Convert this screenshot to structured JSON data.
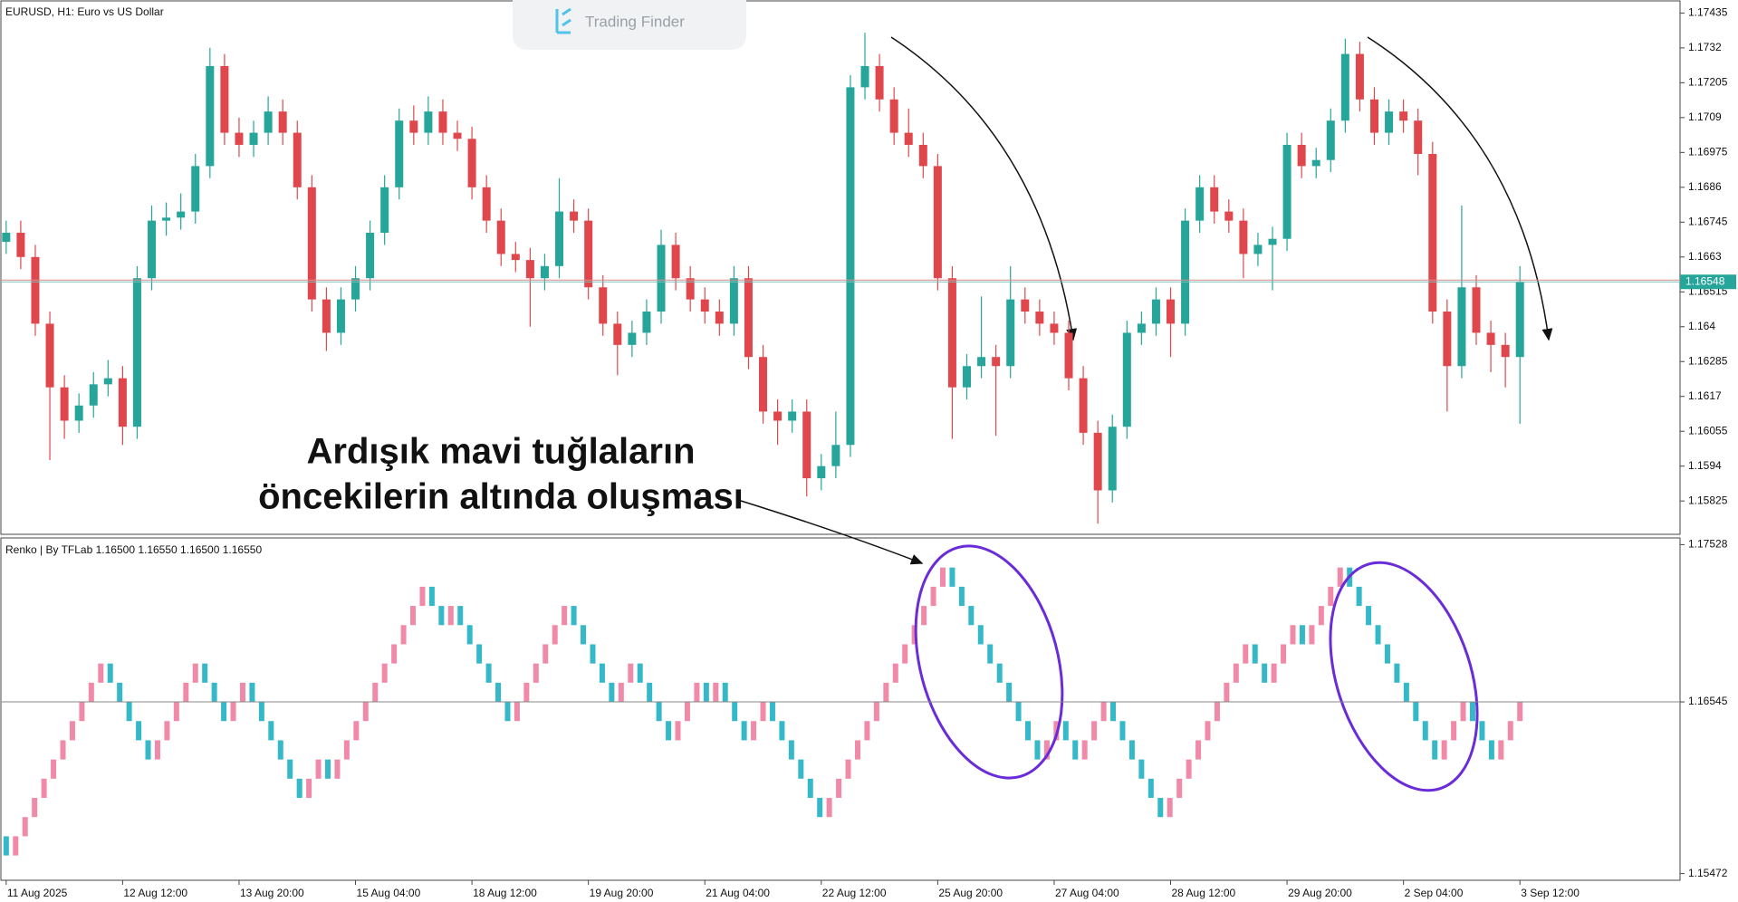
{
  "watermark": "Trading Finder",
  "chart_data": [
    {
      "type": "candlestick",
      "title": "EURUSD, H1:  Euro vs US Dollar",
      "up_color": "#26a69a",
      "down_color": "#e0474c",
      "ylim": [
        1.15715,
        1.17472
      ],
      "yticks": [
        1.17435,
        1.1732,
        1.17205,
        1.1709,
        1.16975,
        1.1686,
        1.16745,
        1.1663,
        1.16515,
        1.164,
        1.16285,
        1.1617,
        1.16055,
        1.1594,
        1.15825
      ],
      "last_price": 1.16548,
      "xlim": [
        -0.3,
        115
      ],
      "xticks": [
        {
          "value": 0,
          "label": "11 Aug 2025"
        },
        {
          "value": 8,
          "label": "12 Aug 12:00"
        },
        {
          "value": 16,
          "label": "13 Aug 20:00"
        },
        {
          "value": 24,
          "label": "15 Aug 04:00"
        },
        {
          "value": 32,
          "label": "18 Aug 12:00"
        },
        {
          "value": 40,
          "label": "19 Aug 20:00"
        },
        {
          "value": 48,
          "label": "21 Aug 04:00"
        },
        {
          "value": 56,
          "label": "22 Aug 12:00"
        },
        {
          "value": 64,
          "label": "25 Aug 20:00"
        },
        {
          "value": 72,
          "label": "27 Aug 04:00"
        },
        {
          "value": 80,
          "label": "28 Aug 12:00"
        },
        {
          "value": 88,
          "label": "29 Aug 20:00"
        },
        {
          "value": 96,
          "label": "2 Sep 04:00"
        },
        {
          "value": 104,
          "label": "3 Sep 12:00"
        }
      ],
      "ohlc": [
        [
          1.1668,
          1.1675,
          1.1664,
          1.1671
        ],
        [
          1.1671,
          1.1675,
          1.1659,
          1.1663
        ],
        [
          1.1663,
          1.1667,
          1.1637,
          1.1641
        ],
        [
          1.1641,
          1.1645,
          1.1596,
          1.162
        ],
        [
          1.162,
          1.1624,
          1.1603,
          1.1609
        ],
        [
          1.1609,
          1.1618,
          1.1605,
          1.1614
        ],
        [
          1.1614,
          1.1625,
          1.161,
          1.1621
        ],
        [
          1.1621,
          1.1629,
          1.1617,
          1.1623
        ],
        [
          1.1623,
          1.1627,
          1.1601,
          1.1607
        ],
        [
          1.1607,
          1.166,
          1.1603,
          1.1656
        ],
        [
          1.1656,
          1.168,
          1.1652,
          1.1675
        ],
        [
          1.1675,
          1.1681,
          1.167,
          1.1676
        ],
        [
          1.1676,
          1.1684,
          1.1672,
          1.1678
        ],
        [
          1.1678,
          1.1697,
          1.1674,
          1.1693
        ],
        [
          1.1693,
          1.1732,
          1.1689,
          1.1726
        ],
        [
          1.1726,
          1.173,
          1.17,
          1.1704
        ],
        [
          1.1704,
          1.1709,
          1.1696,
          1.17
        ],
        [
          1.17,
          1.1708,
          1.1696,
          1.1704
        ],
        [
          1.1704,
          1.1716,
          1.17,
          1.1711
        ],
        [
          1.1711,
          1.1715,
          1.17,
          1.1704
        ],
        [
          1.1704,
          1.1708,
          1.1682,
          1.1686
        ],
        [
          1.1686,
          1.169,
          1.1645,
          1.1649
        ],
        [
          1.1649,
          1.1653,
          1.1632,
          1.1638
        ],
        [
          1.1638,
          1.1653,
          1.1634,
          1.1649
        ],
        [
          1.1649,
          1.166,
          1.1645,
          1.1656
        ],
        [
          1.1656,
          1.1675,
          1.1652,
          1.1671
        ],
        [
          1.1671,
          1.169,
          1.1667,
          1.1686
        ],
        [
          1.1686,
          1.1712,
          1.1682,
          1.1708
        ],
        [
          1.1708,
          1.1713,
          1.17,
          1.1704
        ],
        [
          1.1704,
          1.1716,
          1.17,
          1.1711
        ],
        [
          1.1711,
          1.1715,
          1.17,
          1.1704
        ],
        [
          1.1704,
          1.1708,
          1.1698,
          1.1702
        ],
        [
          1.1702,
          1.1706,
          1.1682,
          1.1686
        ],
        [
          1.1686,
          1.169,
          1.1671,
          1.1675
        ],
        [
          1.1675,
          1.1679,
          1.166,
          1.1664
        ],
        [
          1.1664,
          1.1668,
          1.1658,
          1.1662
        ],
        [
          1.1662,
          1.1666,
          1.164,
          1.1656
        ],
        [
          1.1656,
          1.1664,
          1.1652,
          1.166
        ],
        [
          1.166,
          1.1689,
          1.1656,
          1.1678
        ],
        [
          1.1678,
          1.1682,
          1.1671,
          1.1675
        ],
        [
          1.1675,
          1.1679,
          1.1649,
          1.1653
        ],
        [
          1.1653,
          1.1657,
          1.1637,
          1.1641
        ],
        [
          1.1641,
          1.1645,
          1.1624,
          1.1634
        ],
        [
          1.1634,
          1.1642,
          1.163,
          1.1638
        ],
        [
          1.1638,
          1.1649,
          1.1634,
          1.1645
        ],
        [
          1.1645,
          1.1672,
          1.1641,
          1.1667
        ],
        [
          1.1667,
          1.1671,
          1.1652,
          1.1656
        ],
        [
          1.1656,
          1.166,
          1.1645,
          1.1649
        ],
        [
          1.1649,
          1.1653,
          1.1641,
          1.1645
        ],
        [
          1.1645,
          1.1649,
          1.1637,
          1.1641
        ],
        [
          1.1641,
          1.166,
          1.1637,
          1.1656
        ],
        [
          1.1656,
          1.166,
          1.1626,
          1.163
        ],
        [
          1.163,
          1.1634,
          1.1608,
          1.1612
        ],
        [
          1.1612,
          1.1616,
          1.1601,
          1.1609
        ],
        [
          1.1609,
          1.1616,
          1.1605,
          1.1612
        ],
        [
          1.1612,
          1.1616,
          1.1584,
          1.159
        ],
        [
          1.159,
          1.1598,
          1.1586,
          1.1594
        ],
        [
          1.1594,
          1.1612,
          1.159,
          1.1601
        ],
        [
          1.1601,
          1.1723,
          1.1597,
          1.1719
        ],
        [
          1.1719,
          1.1737,
          1.1715,
          1.1726
        ],
        [
          1.1726,
          1.173,
          1.1711,
          1.1715
        ],
        [
          1.1715,
          1.1719,
          1.17,
          1.1704
        ],
        [
          1.1704,
          1.1712,
          1.1696,
          1.17
        ],
        [
          1.17,
          1.1704,
          1.1689,
          1.1693
        ],
        [
          1.1693,
          1.1697,
          1.1652,
          1.1656
        ],
        [
          1.1656,
          1.166,
          1.1603,
          1.162
        ],
        [
          1.162,
          1.1631,
          1.1616,
          1.1627
        ],
        [
          1.1627,
          1.165,
          1.1623,
          1.163
        ],
        [
          1.163,
          1.1634,
          1.1604,
          1.1627
        ],
        [
          1.1627,
          1.166,
          1.1623,
          1.1649
        ],
        [
          1.1649,
          1.1653,
          1.1641,
          1.1645
        ],
        [
          1.1645,
          1.1649,
          1.1637,
          1.1641
        ],
        [
          1.1641,
          1.1645,
          1.1634,
          1.1638
        ],
        [
          1.1638,
          1.1642,
          1.1619,
          1.1623
        ],
        [
          1.1623,
          1.1627,
          1.1601,
          1.1605
        ],
        [
          1.1605,
          1.1609,
          1.1575,
          1.1586
        ],
        [
          1.1586,
          1.1611,
          1.1582,
          1.1607
        ],
        [
          1.1607,
          1.1642,
          1.1603,
          1.1638
        ],
        [
          1.1638,
          1.1645,
          1.1634,
          1.1641
        ],
        [
          1.1641,
          1.1653,
          1.1637,
          1.1649
        ],
        [
          1.1649,
          1.1653,
          1.163,
          1.1641
        ],
        [
          1.1641,
          1.1679,
          1.1637,
          1.1675
        ],
        [
          1.1675,
          1.169,
          1.1671,
          1.1686
        ],
        [
          1.1686,
          1.169,
          1.1674,
          1.1678
        ],
        [
          1.1678,
          1.1682,
          1.1671,
          1.1675
        ],
        [
          1.1675,
          1.1679,
          1.1656,
          1.1664
        ],
        [
          1.1664,
          1.1671,
          1.166,
          1.1667
        ],
        [
          1.1667,
          1.1673,
          1.1652,
          1.1669
        ],
        [
          1.1669,
          1.1704,
          1.1665,
          1.17
        ],
        [
          1.17,
          1.1704,
          1.1689,
          1.1693
        ],
        [
          1.1693,
          1.1699,
          1.1689,
          1.1695
        ],
        [
          1.1695,
          1.1712,
          1.1691,
          1.1708
        ],
        [
          1.1708,
          1.1735,
          1.1704,
          1.173
        ],
        [
          1.173,
          1.1734,
          1.1711,
          1.1715
        ],
        [
          1.1715,
          1.1719,
          1.17,
          1.1704
        ],
        [
          1.1704,
          1.1715,
          1.17,
          1.1711
        ],
        [
          1.1711,
          1.1715,
          1.1704,
          1.1708
        ],
        [
          1.1708,
          1.1712,
          1.169,
          1.1697
        ],
        [
          1.1697,
          1.1701,
          1.1641,
          1.1645
        ],
        [
          1.1645,
          1.1649,
          1.1612,
          1.1627
        ],
        [
          1.1627,
          1.168,
          1.1623,
          1.1653
        ],
        [
          1.1653,
          1.1657,
          1.1634,
          1.1638
        ],
        [
          1.1638,
          1.1642,
          1.1625,
          1.1634
        ],
        [
          1.1634,
          1.1638,
          1.162,
          1.163
        ],
        [
          1.163,
          1.166,
          1.1608,
          1.16548
        ]
      ]
    },
    {
      "type": "renko",
      "title": "Renko | By TFLab 1.16500 1.16550 1.16500 1.16550",
      "up_color": "#f08aa8",
      "down_color": "#35b9c9",
      "ylim": [
        1.1543,
        1.1757
      ],
      "yticks": [
        1.17528,
        1.16545,
        1.15472
      ],
      "level_line": 1.16545,
      "annotation": [
        "Ardışık mavi tuğlaların",
        "öncekilerin altında oluşması"
      ],
      "values": [
        1.15705,
        1.15585,
        1.15705,
        1.15825,
        1.15945,
        1.16065,
        1.16185,
        1.16305,
        1.16425,
        1.16545,
        1.16665,
        1.16785,
        1.16665,
        1.16545,
        1.16425,
        1.16305,
        1.16185,
        1.16305,
        1.16425,
        1.16545,
        1.16665,
        1.16785,
        1.16665,
        1.16545,
        1.16425,
        1.16545,
        1.16665,
        1.16545,
        1.16425,
        1.16305,
        1.16185,
        1.16065,
        1.15945,
        1.16065,
        1.16185,
        1.16065,
        1.16185,
        1.16305,
        1.16425,
        1.16545,
        1.16665,
        1.16785,
        1.16905,
        1.17025,
        1.17145,
        1.17265,
        1.17145,
        1.17025,
        1.17145,
        1.17025,
        1.16905,
        1.16785,
        1.16665,
        1.16545,
        1.16425,
        1.16545,
        1.16665,
        1.16785,
        1.16905,
        1.17025,
        1.17145,
        1.17025,
        1.16905,
        1.16785,
        1.16665,
        1.16545,
        1.16665,
        1.16785,
        1.16665,
        1.16545,
        1.16425,
        1.16305,
        1.16425,
        1.16545,
        1.16665,
        1.16545,
        1.16665,
        1.16545,
        1.16425,
        1.16305,
        1.16425,
        1.16545,
        1.16425,
        1.16305,
        1.16185,
        1.16065,
        1.15945,
        1.15825,
        1.15945,
        1.16065,
        1.16185,
        1.16305,
        1.16425,
        1.16545,
        1.16665,
        1.16785,
        1.16905,
        1.17025,
        1.17145,
        1.17265,
        1.17385,
        1.17265,
        1.17145,
        1.17025,
        1.16905,
        1.16785,
        1.16665,
        1.16545,
        1.16425,
        1.16305,
        1.16185,
        1.16305,
        1.16425,
        1.16305,
        1.16185,
        1.16305,
        1.16425,
        1.16545,
        1.16425,
        1.16305,
        1.16185,
        1.16065,
        1.15945,
        1.15825,
        1.15945,
        1.16065,
        1.16185,
        1.16305,
        1.16425,
        1.16545,
        1.16665,
        1.16785,
        1.16905,
        1.16785,
        1.16665,
        1.16785,
        1.16905,
        1.17025,
        1.16905,
        1.17025,
        1.17145,
        1.17265,
        1.17385,
        1.17265,
        1.17145,
        1.17025,
        1.16905,
        1.16785,
        1.16665,
        1.16545,
        1.16425,
        1.16305,
        1.16185,
        1.16305,
        1.16425,
        1.16545,
        1.16425,
        1.16305,
        1.16185,
        1.16305,
        1.16425,
        1.16545
      ]
    }
  ]
}
